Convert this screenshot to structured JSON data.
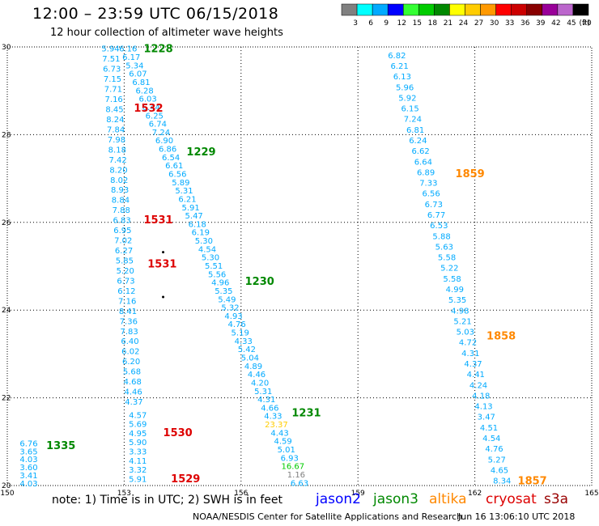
{
  "header": {
    "title": "12:00  –  23:59  UTC  06/15/2018",
    "subtitle": "12 hour collection of altimeter wave heights"
  },
  "footer": {
    "note": "note:  1) Time is in UTC;  2) SWH is in feet",
    "credit": "NOAA/NESDIS Center for Satellite Applications and Research",
    "timestamp": "Jun 16 13:06:10 UTC 2018"
  },
  "legend": {
    "missions": [
      {
        "name": "jason2",
        "color": "#0000ff"
      },
      {
        "name": "jason3",
        "color": "#008800"
      },
      {
        "name": "altika",
        "color": "#ff8800"
      },
      {
        "name": "cryosat",
        "color": "#dd0000"
      },
      {
        "name": "s3a",
        "color": "#990000"
      }
    ]
  },
  "chart_data": {
    "type": "scatter",
    "xlim": [
      150,
      165
    ],
    "ylim": [
      20,
      30
    ],
    "x_ticks": [
      "150",
      "153",
      "156",
      "159",
      "162",
      "165"
    ],
    "y_ticks": [
      "20",
      "22",
      "24",
      "26",
      "28",
      "30"
    ],
    "grid": true,
    "colorbar": {
      "labels": [
        "3",
        "6",
        "9",
        "12",
        "15",
        "18",
        "21",
        "24",
        "27",
        "30",
        "33",
        "36",
        "39",
        "42",
        "45",
        "70"
      ],
      "unit": "(ft)",
      "colors": [
        "#808080",
        "#00ffff",
        "#00aaff",
        "#0000ff",
        "#33ff33",
        "#00cc00",
        "#008800",
        "#ffff00",
        "#ffcc00",
        "#ff9900",
        "#ff0000",
        "#cc0000",
        "#880000",
        "#990099",
        "#bb66cc",
        "#000000"
      ]
    },
    "series": [
      {
        "name": "track-1335",
        "x": 150.55,
        "y_start": 20.95,
        "y_end": 20.04,
        "values": [
          "6.76",
          "3.65",
          "4.03",
          "3.60",
          "3.41",
          "4.03"
        ],
        "color": "#00aaff",
        "label": "1335",
        "label_color": "#008800",
        "label_x": 151.0,
        "label_y": 20.9
      },
      {
        "name": "track-1530",
        "x": 153.35,
        "y_start": 21.6,
        "y_end": 20.14,
        "values": [
          "4.57",
          "5.69",
          "4.95",
          "5.90",
          "3.33",
          "4.11",
          "3.32",
          "5.91"
        ],
        "color": "#00aaff",
        "label": "1530",
        "label_color": "#dd0000",
        "label_x": 154.0,
        "label_y": 21.2
      },
      {
        "name": "track-1529",
        "label": "1529",
        "label_color": "#dd0000",
        "label_x": 154.2,
        "label_y": 20.15,
        "values": []
      },
      {
        "name": "track-1228-1531",
        "x_start": 152.65,
        "y_start": 29.95,
        "x_end": 153.25,
        "y_end": 21.9,
        "values": [
          "5.94",
          "7.51",
          "6.73",
          "7.15",
          "7.71",
          "7.16",
          "8.45",
          "8.24",
          "7.84",
          "7.98",
          "8.18",
          "7.42",
          "8.20",
          "8.02",
          "8.93",
          "8.84",
          "7.88",
          "6.83",
          "6.95",
          "7.02",
          "6.27",
          "5.85",
          "5.20",
          "6.73",
          "6.12",
          "7.16",
          "8.41",
          "7.36",
          "7.83",
          "6.40",
          "6.02",
          "6.20",
          "5.68",
          "4.68",
          "4.46",
          "4.37"
        ],
        "color": "#00aaff"
      },
      {
        "name": "track-1229-1231",
        "x_start": 153.1,
        "y_start": 29.95,
        "x_end": 157.5,
        "y_end": 20.05,
        "values": [
          "6.16",
          "6.17",
          "5.34",
          "6.07",
          "6.81",
          "6.28",
          "6.03",
          "6.44",
          "6.25",
          "6.74",
          "7.24",
          "6.90",
          "6.86",
          "6.54",
          "6.61",
          "6.56",
          "5.89",
          "5.31",
          "6.21",
          "5.91",
          "5.47",
          "6.18",
          "6.19",
          "5.30",
          "4.54",
          "5.30",
          "5.51",
          "5.56",
          "4.96",
          "5.35",
          "5.49",
          "5.32",
          "4.93",
          "4.76",
          "5.19",
          "4.33",
          "5.42",
          "5.04",
          "4.89",
          "4.46",
          "4.20",
          "5.31",
          "4.31",
          "4.66",
          "4.33",
          "23.37",
          "4.43",
          "4.59",
          "5.01",
          "6.93",
          "16.67",
          "1.16",
          "6.63"
        ],
        "color": "#00aaff",
        "highlight": {
          "23.37": "#ffcc00",
          "16.67": "#00cc00",
          "1.16": "#808080"
        }
      },
      {
        "name": "track-1857-1859",
        "x_start": 160.0,
        "y_start": 29.8,
        "x_end": 162.7,
        "y_end": 20.1,
        "values": [
          "6.82",
          "6.21",
          "6.13",
          "5.96",
          "5.92",
          "6.15",
          "7.24",
          "6.81",
          "6.24",
          "6.62",
          "6.64",
          "6.89",
          "7.33",
          "6.56",
          "6.73",
          "6.77",
          "6.53",
          "5.88",
          "5.63",
          "5.58",
          "5.22",
          "5.58",
          "4.99",
          "5.35",
          "4.98",
          "5.21",
          "5.03",
          "4.72",
          "4.31",
          "4.37",
          "4.41",
          "4.24",
          "4.18",
          "4.13",
          "3.47",
          "4.51",
          "4.54",
          "4.76",
          "5.27",
          "4.65",
          "8.34"
        ],
        "color": "#00aaff"
      }
    ],
    "time_labels": [
      {
        "text": "1228",
        "color": "#008800",
        "x": 153.5,
        "y": 29.95
      },
      {
        "text": "1532",
        "color": "#dd0000",
        "x": 153.25,
        "y": 28.6
      },
      {
        "text": "1229",
        "color": "#008800",
        "x": 154.6,
        "y": 27.6
      },
      {
        "text": "1531",
        "color": "#dd0000",
        "x": 153.5,
        "y": 26.05
      },
      {
        "text": "1531",
        "color": "#dd0000",
        "x": 153.6,
        "y": 25.05
      },
      {
        "text": "1230",
        "color": "#008800",
        "x": 156.1,
        "y": 24.65
      },
      {
        "text": "1231",
        "color": "#008800",
        "x": 157.3,
        "y": 21.65
      },
      {
        "text": "1859",
        "color": "#ff8800",
        "x": 161.5,
        "y": 27.1
      },
      {
        "text": "1858",
        "color": "#ff8800",
        "x": 162.3,
        "y": 23.4
      },
      {
        "text": "1857",
        "color": "#ff8800",
        "x": 163.1,
        "y": 20.1
      }
    ],
    "markers": [
      {
        "x": 154.0,
        "y": 25.32
      },
      {
        "x": 154.0,
        "y": 24.3
      }
    ]
  }
}
